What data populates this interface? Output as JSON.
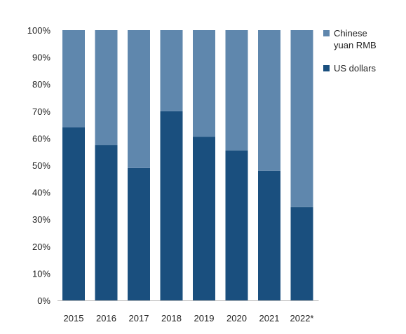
{
  "chart_data": {
    "type": "bar",
    "stacked": true,
    "categories": [
      "2015",
      "2016",
      "2017",
      "2018",
      "2019",
      "2020",
      "2021",
      "2022*"
    ],
    "series": [
      {
        "name": "US dollars",
        "values": [
          64,
          57.5,
          49,
          70,
          60.5,
          55.5,
          48,
          34.5
        ]
      },
      {
        "name": "Chinese yuan RMB",
        "values": [
          36,
          42.5,
          51,
          30,
          39.5,
          44.5,
          52,
          65.5
        ]
      }
    ],
    "title": "",
    "xlabel": "",
    "ylabel": "",
    "ylim": [
      0,
      100
    ],
    "yticks": [
      "0%",
      "10%",
      "20%",
      "30%",
      "40%",
      "50%",
      "60%",
      "70%",
      "80%",
      "90%",
      "100%"
    ],
    "grid": false,
    "legend_position": "right",
    "legend": {
      "entries": [
        {
          "lines": [
            "Chinese",
            "yuan RMB"
          ],
          "series": "Chinese yuan RMB"
        },
        {
          "lines": [
            "US dollars"
          ],
          "series": "US dollars"
        }
      ]
    },
    "colors": {
      "US dollars": "#1a4f7e",
      "Chinese yuan RMB": "#5f87ad",
      "axis": "#bbbbbb",
      "text": "#222222"
    }
  }
}
